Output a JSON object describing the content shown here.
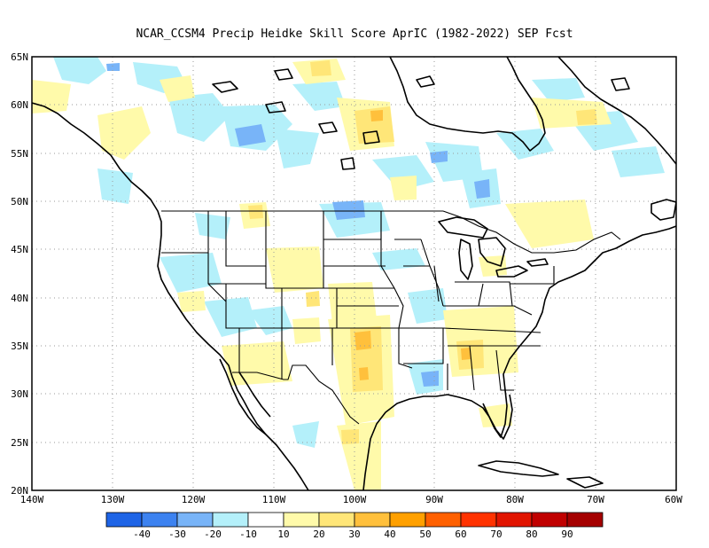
{
  "title": "NCAR_CCSM4 Precip Heidke Skill Score AprIC (1982-2022) SEP Fcst",
  "map": {
    "lat_range": [
      20,
      65
    ],
    "lon_range": [
      -140,
      -60
    ],
    "lat_labels": [
      "20N",
      "25N",
      "30N",
      "35N",
      "40N",
      "45N",
      "50N",
      "55N",
      "60N",
      "65N"
    ],
    "lon_labels": [
      "140W",
      "130W",
      "120W",
      "110W",
      "100W",
      "90W",
      "80W",
      "70W",
      "60W"
    ],
    "grid_lines": "dotted",
    "projection": "cylindrical"
  },
  "colorbar": {
    "labels": [
      "-40",
      "-30",
      "-20",
      "-10",
      "10",
      "20",
      "30",
      "40",
      "50",
      "60",
      "70",
      "80",
      "90"
    ],
    "colors": [
      "#1e64e6",
      "#3c82f0",
      "#78b4f8",
      "#b4f0fa",
      "#ffffff",
      "#fffaaa",
      "#ffe678",
      "#ffc03c",
      "#ffa000",
      "#ff6000",
      "#ff3200",
      "#e11400",
      "#c00000",
      "#a50000"
    ]
  },
  "field_colors": {
    "neg10": "#b4f0fa",
    "neg20": "#78b4f8",
    "pos10": "#fffaaa",
    "pos20": "#ffe678",
    "pos30": "#ffc03c"
  }
}
